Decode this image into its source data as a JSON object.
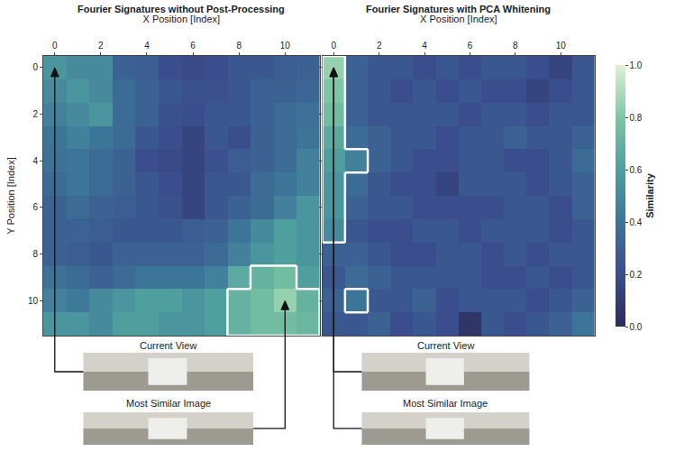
{
  "chart_data": [
    {
      "type": "heatmap",
      "title": "Fourier Signatures without Post-Processing",
      "x_label": "X Position [Index]",
      "y_label": "Y Position [Index]",
      "x": [
        0,
        1,
        2,
        3,
        4,
        5,
        6,
        7,
        8,
        9,
        10,
        11
      ],
      "y": [
        0,
        1,
        2,
        3,
        4,
        5,
        6,
        7,
        8,
        9,
        10,
        11
      ],
      "xlim": [
        -0.5,
        11.5
      ],
      "ylim": [
        11.5,
        -0.5
      ],
      "xticks": [
        0,
        2,
        4,
        6,
        8,
        10
      ],
      "yticks": [
        0,
        2,
        4,
        6,
        8,
        10
      ],
      "cells": [
        [
          0.55,
          0.5,
          0.5,
          0.3,
          0.28,
          0.2,
          0.18,
          0.2,
          0.25,
          0.25,
          0.28,
          0.3
        ],
        [
          0.5,
          0.55,
          0.5,
          0.35,
          0.3,
          0.25,
          0.22,
          0.22,
          0.25,
          0.3,
          0.3,
          0.33
        ],
        [
          0.45,
          0.5,
          0.55,
          0.35,
          0.3,
          0.22,
          0.2,
          0.25,
          0.25,
          0.3,
          0.35,
          0.38
        ],
        [
          0.4,
          0.45,
          0.4,
          0.35,
          0.25,
          0.2,
          0.15,
          0.25,
          0.2,
          0.3,
          0.35,
          0.4
        ],
        [
          0.38,
          0.4,
          0.35,
          0.3,
          0.2,
          0.18,
          0.15,
          0.22,
          0.28,
          0.3,
          0.35,
          0.45
        ],
        [
          0.35,
          0.4,
          0.35,
          0.3,
          0.25,
          0.2,
          0.15,
          0.25,
          0.25,
          0.35,
          0.4,
          0.45
        ],
        [
          0.3,
          0.35,
          0.3,
          0.28,
          0.25,
          0.22,
          0.15,
          0.25,
          0.3,
          0.35,
          0.45,
          0.55
        ],
        [
          0.3,
          0.3,
          0.28,
          0.25,
          0.25,
          0.25,
          0.28,
          0.3,
          0.4,
          0.5,
          0.6,
          0.55
        ],
        [
          0.3,
          0.28,
          0.25,
          0.3,
          0.3,
          0.3,
          0.3,
          0.35,
          0.45,
          0.55,
          0.6,
          0.55
        ],
        [
          0.38,
          0.35,
          0.3,
          0.35,
          0.4,
          0.4,
          0.4,
          0.45,
          0.65,
          0.7,
          0.75,
          0.6
        ],
        [
          0.45,
          0.42,
          0.5,
          0.55,
          0.6,
          0.6,
          0.55,
          0.6,
          0.7,
          0.75,
          0.85,
          0.7
        ],
        [
          0.55,
          0.55,
          0.5,
          0.6,
          0.6,
          0.55,
          0.55,
          0.6,
          0.7,
          0.75,
          0.75,
          0.72
        ]
      ],
      "highlighted_cells": [
        [
          9,
          9
        ],
        [
          10,
          9
        ],
        [
          8,
          10
        ],
        [
          9,
          10
        ],
        [
          10,
          10
        ],
        [
          11,
          10
        ],
        [
          8,
          11
        ],
        [
          9,
          11
        ],
        [
          10,
          11
        ],
        [
          11,
          11
        ]
      ],
      "current_view": [
        0,
        0
      ],
      "most_similar": [
        10,
        10
      ],
      "current_view_label": "Current View",
      "most_similar_label": "Most Similar Image"
    },
    {
      "type": "heatmap",
      "title": "Fourier Signatures with PCA Whitening",
      "x_label": "X Position [Index]",
      "tick_labels": "x",
      "x": [
        0,
        1,
        2,
        3,
        4,
        5,
        6,
        7,
        8,
        9,
        10,
        11
      ],
      "y": [
        0,
        1,
        2,
        3,
        4,
        5,
        6,
        7,
        8,
        9,
        10,
        11
      ],
      "xlim": [
        -0.5,
        11.5
      ],
      "ylim": [
        11.5,
        -0.5
      ],
      "xticks": [
        0,
        2,
        4,
        6,
        8,
        10
      ],
      "yticks": [
        0,
        2,
        4,
        6,
        8,
        10
      ],
      "cells": [
        [
          0.85,
          0.3,
          0.25,
          0.25,
          0.2,
          0.25,
          0.2,
          0.25,
          0.25,
          0.2,
          0.15,
          0.25
        ],
        [
          0.8,
          0.3,
          0.25,
          0.2,
          0.25,
          0.2,
          0.25,
          0.2,
          0.2,
          0.15,
          0.2,
          0.25
        ],
        [
          0.75,
          0.3,
          0.25,
          0.25,
          0.25,
          0.25,
          0.2,
          0.25,
          0.25,
          0.2,
          0.25,
          0.25
        ],
        [
          0.65,
          0.35,
          0.3,
          0.25,
          0.25,
          0.2,
          0.25,
          0.25,
          0.3,
          0.25,
          0.25,
          0.3
        ],
        [
          0.6,
          0.45,
          0.3,
          0.25,
          0.2,
          0.2,
          0.25,
          0.25,
          0.2,
          0.2,
          0.25,
          0.35
        ],
        [
          0.55,
          0.35,
          0.25,
          0.2,
          0.2,
          0.15,
          0.25,
          0.25,
          0.25,
          0.2,
          0.25,
          0.3
        ],
        [
          0.55,
          0.3,
          0.25,
          0.25,
          0.2,
          0.2,
          0.2,
          0.2,
          0.25,
          0.25,
          0.2,
          0.3
        ],
        [
          0.5,
          0.25,
          0.2,
          0.2,
          0.25,
          0.25,
          0.2,
          0.25,
          0.25,
          0.25,
          0.2,
          0.25
        ],
        [
          0.3,
          0.3,
          0.25,
          0.2,
          0.2,
          0.25,
          0.25,
          0.2,
          0.25,
          0.2,
          0.25,
          0.25
        ],
        [
          0.25,
          0.35,
          0.3,
          0.25,
          0.25,
          0.25,
          0.25,
          0.2,
          0.2,
          0.25,
          0.2,
          0.25
        ],
        [
          0.3,
          0.4,
          0.25,
          0.25,
          0.3,
          0.2,
          0.25,
          0.25,
          0.25,
          0.2,
          0.25,
          0.3
        ],
        [
          0.25,
          0.25,
          0.3,
          0.2,
          0.25,
          0.2,
          0.05,
          0.25,
          0.2,
          0.25,
          0.3,
          0.4
        ]
      ],
      "highlighted_cells": [
        [
          0,
          0
        ],
        [
          0,
          1
        ],
        [
          0,
          2
        ],
        [
          0,
          3
        ],
        [
          0,
          4
        ],
        [
          0,
          5
        ],
        [
          0,
          6
        ],
        [
          0,
          7
        ],
        [
          1,
          4
        ],
        [
          1,
          10
        ]
      ],
      "current_view": [
        0,
        0
      ],
      "most_similar": [
        0,
        0
      ],
      "current_view_label": "Current View",
      "most_similar_label": "Most Similar Image",
      "colorbar": {
        "title": "Similarity",
        "range": [
          0,
          1
        ],
        "ticks": [
          {
            "value": 0,
            "label": "0.0"
          },
          {
            "value": 0.2,
            "label": "0.2"
          },
          {
            "value": 0.4,
            "label": "0.4"
          },
          {
            "value": 0.6,
            "label": "0.6"
          },
          {
            "value": 0.8,
            "label": "0.8"
          },
          {
            "value": 1,
            "label": "1.0"
          }
        ]
      }
    }
  ]
}
